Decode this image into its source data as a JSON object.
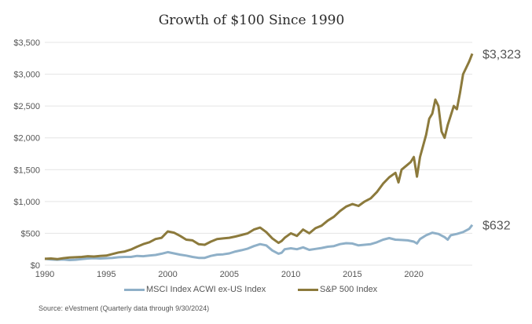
{
  "chart_data": {
    "type": "line",
    "title": "Growth of $100 Since 1990",
    "xlabel": "",
    "ylabel": "",
    "xlim": [
      1990,
      2024.75
    ],
    "ylim": [
      0,
      3500
    ],
    "x_ticks": [
      "1990",
      "1995",
      "2000",
      "2005",
      "2010",
      "2015",
      "2020"
    ],
    "x_tick_values": [
      1990,
      1995,
      2000,
      2005,
      2010,
      2015,
      2020
    ],
    "y_ticks": [
      "$0",
      "$500",
      "$1,000",
      "$1,500",
      "$2,000",
      "$2,500",
      "$3,000",
      "$3,500"
    ],
    "y_tick_values": [
      0,
      500,
      1000,
      1500,
      2000,
      2500,
      3000,
      3500
    ],
    "grid": true,
    "legend_position": "bottom",
    "series": [
      {
        "name": "MSCI Index ACWI ex-US Index",
        "color": "#8fb0c8",
        "end_label": "$632",
        "x": [
          1990,
          1990.5,
          1991,
          1991.5,
          1992,
          1992.5,
          1993,
          1993.5,
          1994,
          1994.5,
          1995,
          1995.5,
          1996,
          1996.5,
          1997,
          1997.5,
          1998,
          1998.5,
          1999,
          1999.5,
          2000,
          2000.5,
          2001,
          2001.5,
          2002,
          2002.5,
          2003,
          2003.5,
          2004,
          2004.5,
          2005,
          2005.5,
          2006,
          2006.5,
          2007,
          2007.5,
          2008,
          2008.5,
          2009,
          2009.25,
          2009.5,
          2010,
          2010.5,
          2011,
          2011.5,
          2012,
          2012.5,
          2013,
          2013.5,
          2014,
          2014.5,
          2015,
          2015.5,
          2016,
          2016.5,
          2017,
          2017.5,
          2018,
          2018.5,
          2019,
          2019.5,
          2020,
          2020.25,
          2020.5,
          2021,
          2021.5,
          2022,
          2022.5,
          2022.75,
          2023,
          2023.5,
          2024,
          2024.5,
          2024.75
        ],
        "values": [
          100,
          90,
          85,
          90,
          80,
          85,
          95,
          105,
          110,
          105,
          110,
          115,
          125,
          130,
          130,
          145,
          140,
          150,
          160,
          180,
          205,
          185,
          165,
          150,
          130,
          115,
          115,
          145,
          165,
          170,
          185,
          215,
          235,
          260,
          300,
          330,
          310,
          230,
          180,
          195,
          250,
          265,
          250,
          280,
          240,
          255,
          270,
          290,
          300,
          330,
          345,
          340,
          310,
          320,
          330,
          360,
          400,
          425,
          400,
          395,
          390,
          370,
          340,
          410,
          470,
          510,
          490,
          440,
          400,
          470,
          490,
          520,
          570,
          632
        ]
      },
      {
        "name": "S&P 500 Index",
        "color": "#8c7a3c",
        "end_label": "$3,323",
        "x": [
          1990,
          1990.5,
          1991,
          1991.5,
          1992,
          1992.5,
          1993,
          1993.5,
          1994,
          1994.5,
          1995,
          1995.5,
          1996,
          1996.5,
          1997,
          1997.5,
          1998,
          1998.5,
          1999,
          1999.5,
          2000,
          2000.5,
          2001,
          2001.5,
          2002,
          2002.5,
          2003,
          2003.5,
          2004,
          2004.5,
          2005,
          2005.5,
          2006,
          2006.5,
          2007,
          2007.5,
          2008,
          2008.5,
          2009,
          2009.25,
          2009.5,
          2010,
          2010.5,
          2011,
          2011.5,
          2012,
          2012.5,
          2013,
          2013.5,
          2014,
          2014.5,
          2015,
          2015.5,
          2016,
          2016.5,
          2017,
          2017.5,
          2018,
          2018.5,
          2018.75,
          2019,
          2019.5,
          2019.75,
          2020,
          2020.25,
          2020.5,
          2021,
          2021.25,
          2021.5,
          2021.75,
          2022,
          2022.25,
          2022.5,
          2022.75,
          2023,
          2023.25,
          2023.5,
          2023.75,
          2024,
          2024.25,
          2024.5,
          2024.75
        ],
        "values": [
          100,
          105,
          95,
          110,
          120,
          125,
          130,
          140,
          135,
          145,
          150,
          175,
          200,
          215,
          245,
          290,
          330,
          360,
          410,
          430,
          530,
          510,
          460,
          400,
          390,
          330,
          320,
          370,
          410,
          420,
          430,
          450,
          475,
          500,
          560,
          590,
          520,
          420,
          350,
          380,
          430,
          500,
          460,
          560,
          500,
          580,
          620,
          700,
          760,
          850,
          920,
          960,
          930,
          1000,
          1050,
          1150,
          1280,
          1380,
          1450,
          1300,
          1500,
          1580,
          1620,
          1700,
          1390,
          1700,
          2050,
          2300,
          2380,
          2600,
          2500,
          2100,
          2000,
          2200,
          2350,
          2500,
          2450,
          2700,
          3000,
          3100,
          3200,
          3323
        ]
      }
    ],
    "source": "Source: eVestment (Quarterly data through 9/30/2024)"
  }
}
